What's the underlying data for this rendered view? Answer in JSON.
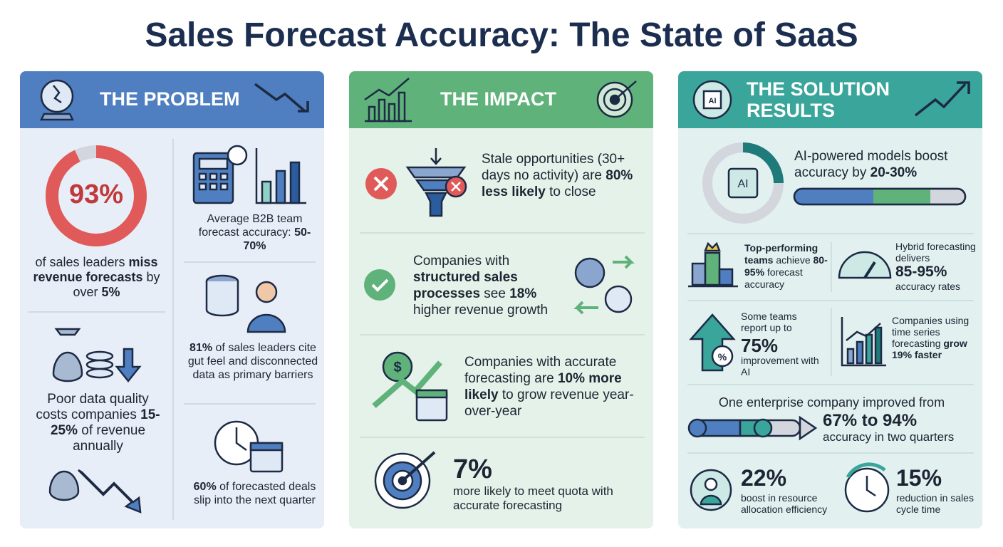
{
  "title": "Sales Forecast Accuracy: The State of SaaS",
  "problem": {
    "header": "THE PROBLEM",
    "donut": {
      "value": 93,
      "label": "93%"
    },
    "donut_text": [
      {
        "text": "of sales leaders "
      },
      {
        "text": "miss revenue forecasts",
        "bold": true
      },
      {
        "text": " by over "
      },
      {
        "text": "5%",
        "bold": true
      }
    ],
    "data_quality": [
      {
        "text": "Poor data quality costs companies "
      },
      {
        "text": "15-25%",
        "bold": true
      },
      {
        "text": " of revenue annually"
      }
    ],
    "accuracy": [
      {
        "text": "Average B2B team forecast accuracy: "
      },
      {
        "text": "50-70%",
        "bold": true
      }
    ],
    "barriers": [
      {
        "text": "81%",
        "bold": true
      },
      {
        "text": " of sales leaders cite gut feel and disconnected data as primary barriers"
      }
    ],
    "slip": [
      {
        "text": "60%",
        "bold": true
      },
      {
        "text": " of forecasted deals slip into the next quarter"
      }
    ]
  },
  "impact": {
    "header": "THE IMPACT",
    "stale": [
      {
        "text": "Stale opportunities (30+ days no activity) are "
      },
      {
        "text": "80% less likely",
        "bold": true
      },
      {
        "text": " to close"
      }
    ],
    "structured": [
      {
        "text": "Companies with "
      },
      {
        "text": "structured sales processes",
        "bold": true
      },
      {
        "text": " see "
      },
      {
        "text": "18%",
        "bold": true
      },
      {
        "text": " higher revenue growth"
      }
    ],
    "accurate": [
      {
        "text": "Companies with accurate forecasting are "
      },
      {
        "text": "10% more likely",
        "bold": true
      },
      {
        "text": " to grow revenue year-over-year"
      }
    ],
    "quota_value": "7%",
    "quota_text": "more likely to meet quota with accurate forecasting"
  },
  "solution": {
    "header": "THE SOLUTION RESULTS",
    "ai_models": [
      {
        "text": "AI-powered models boost accuracy by "
      },
      {
        "text": "20-30%",
        "bold": true
      }
    ],
    "top_teams": [
      {
        "text": "Top-performing teams",
        "bold": true
      },
      {
        "text": " achieve "
      },
      {
        "text": "80-95%",
        "bold": true
      },
      {
        "text": " forecast accuracy"
      }
    ],
    "hybrid_pre": "Hybrid forecasting delivers",
    "hybrid_value": "85-95%",
    "hybrid_post": "accuracy rates",
    "some_pre": "Some teams report up to",
    "some_value": "75%",
    "some_post": "improvement with AI",
    "time_series": [
      {
        "text": "Companies using time series forecasting "
      },
      {
        "text": "grow 19% faster",
        "bold": true
      }
    ],
    "enterprise_pre": "One enterprise company improved from",
    "enterprise_value": "67% to 94%",
    "enterprise_post": "accuracy in two quarters",
    "resource_value": "22%",
    "resource_text": "boost in resource allocation efficiency",
    "cycle_value": "15%",
    "cycle_text": "reduction in sales cycle time"
  }
}
